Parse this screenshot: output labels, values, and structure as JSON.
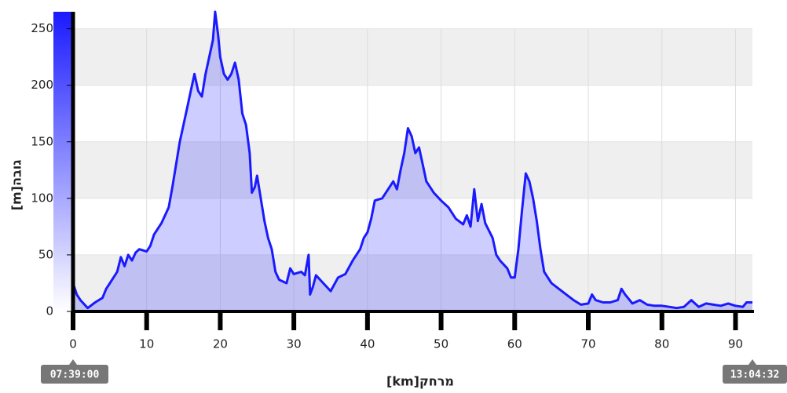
{
  "chart_data": {
    "type": "area",
    "y_label": "גובה[m]",
    "x_label": "מרחק[km]",
    "start_time": "07:39:00",
    "end_time": "13:04:32",
    "xlim": [
      0,
      92.3
    ],
    "xticks": [
      0,
      10,
      20,
      30,
      40,
      50,
      60,
      70,
      80,
      90
    ],
    "ylim": [
      0,
      265
    ],
    "yticks": [
      0,
      50,
      100,
      150,
      200,
      250
    ],
    "grid": true,
    "x": [
      0,
      0.5,
      1,
      2,
      3,
      4,
      4.5,
      5,
      5.5,
      6,
      6.5,
      7,
      7.5,
      8,
      8.5,
      9,
      10,
      10.5,
      11,
      12,
      13,
      13.5,
      14,
      14.5,
      15,
      15.5,
      16,
      16.5,
      17,
      17.5,
      18,
      18.5,
      19,
      19.3,
      19.7,
      20,
      20.5,
      21,
      21.5,
      22,
      22.5,
      23,
      23.5,
      24,
      24.3,
      24.7,
      25,
      25.5,
      26,
      26.5,
      27,
      27.5,
      28,
      29,
      29.5,
      30,
      31,
      31.5,
      32,
      32.2,
      32.6,
      33,
      34,
      35,
      36,
      37,
      38,
      39,
      39.5,
      40,
      40.5,
      41,
      42,
      43,
      43.5,
      44,
      44.5,
      45,
      45.5,
      46,
      46.5,
      47,
      47.5,
      48,
      49,
      50,
      51,
      52,
      53,
      53.5,
      54,
      54.5,
      55,
      55.5,
      56,
      57,
      57.5,
      58,
      59,
      59.5,
      60,
      60.5,
      61,
      61.5,
      62,
      62.5,
      63,
      63.5,
      64,
      64.5,
      65,
      66,
      67,
      68,
      69,
      70,
      70.5,
      71,
      72,
      73,
      74,
      74.5,
      75,
      76,
      77,
      78,
      79,
      80,
      81,
      82,
      83,
      84,
      85,
      86,
      87,
      88,
      89,
      90,
      91,
      91.5,
      92.3
    ],
    "series": [
      {
        "color": "#1a1aff",
        "values": [
          25,
          15,
          10,
          3,
          8,
          12,
          20,
          25,
          30,
          35,
          48,
          40,
          50,
          45,
          52,
          55,
          53,
          58,
          68,
          78,
          92,
          110,
          130,
          150,
          165,
          180,
          195,
          210,
          195,
          190,
          210,
          225,
          240,
          265,
          245,
          225,
          210,
          205,
          210,
          220,
          205,
          175,
          165,
          140,
          105,
          110,
          120,
          100,
          80,
          65,
          55,
          35,
          28,
          25,
          38,
          33,
          35,
          32,
          50,
          15,
          22,
          32,
          25,
          18,
          30,
          33,
          45,
          55,
          65,
          70,
          82,
          98,
          100,
          110,
          115,
          108,
          125,
          140,
          162,
          155,
          140,
          145,
          130,
          115,
          105,
          98,
          92,
          82,
          77,
          85,
          75,
          108,
          80,
          95,
          78,
          65,
          50,
          45,
          38,
          30,
          30,
          55,
          90,
          122,
          115,
          100,
          80,
          55,
          35,
          30,
          25,
          20,
          15,
          10,
          6,
          7,
          15,
          10,
          8,
          8,
          10,
          20,
          15,
          7,
          10,
          6,
          5,
          5,
          4,
          3,
          4,
          10,
          4,
          7,
          6,
          5,
          7,
          5,
          4,
          8,
          8
        ]
      }
    ]
  }
}
